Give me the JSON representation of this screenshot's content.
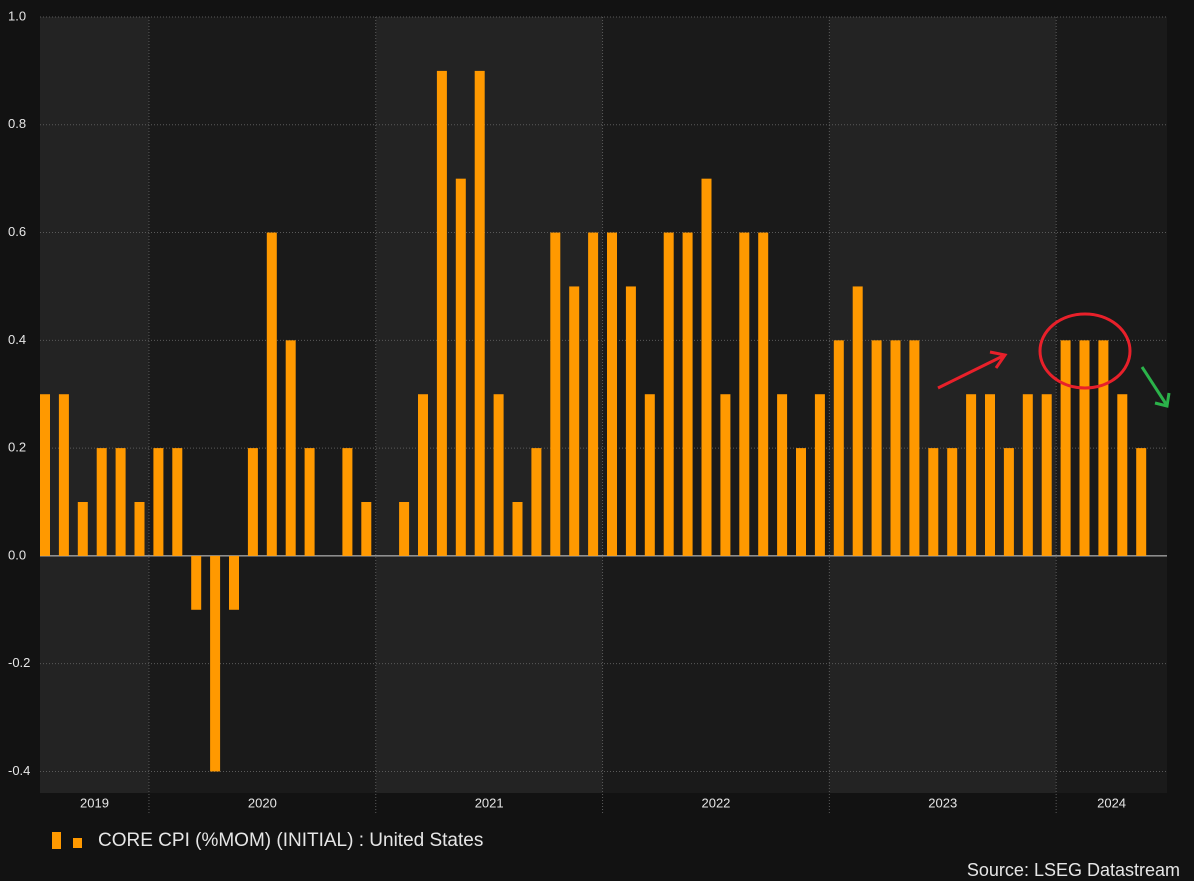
{
  "chart_data": {
    "type": "bar",
    "series": [
      {
        "name": "CORE CPI (%MOM) (INITIAL) : United States",
        "color": "#ff9900",
        "values": [
          0.3,
          0.3,
          0.1,
          0.2,
          0.2,
          0.1,
          0.2,
          0.2,
          -0.1,
          -0.4,
          -0.1,
          0.2,
          0.6,
          0.4,
          0.2,
          0,
          0.2,
          0.1,
          0,
          0.1,
          0.3,
          0.9,
          0.7,
          0.9,
          0.3,
          0.1,
          0.2,
          0.6,
          0.5,
          0.6,
          0.6,
          0.5,
          0.3,
          0.6,
          0.6,
          0.7,
          0.3,
          0.6,
          0.6,
          0.3,
          0.2,
          0.3,
          0.4,
          0.5,
          0.4,
          0.4,
          0.4,
          0.2,
          0.2,
          0.3,
          0.3,
          0.2,
          0.3,
          0.3,
          0.4,
          0.4,
          0.4,
          0.3,
          0.2
        ]
      }
    ],
    "years": [
      "2019",
      "2020",
      "2021",
      "2022",
      "2023",
      "2024"
    ],
    "ylim": [
      -0.44,
      1.0
    ],
    "yticks": [
      {
        "value": -0.4,
        "label": "-0.4"
      },
      -0.2,
      {
        "value": 0,
        "label": "0.0"
      },
      0.2,
      0.4,
      0.6,
      0.8,
      {
        "value": 1,
        "label": "1.0"
      }
    ],
    "grid": true,
    "source": "Source: LSEG Datastream"
  }
}
